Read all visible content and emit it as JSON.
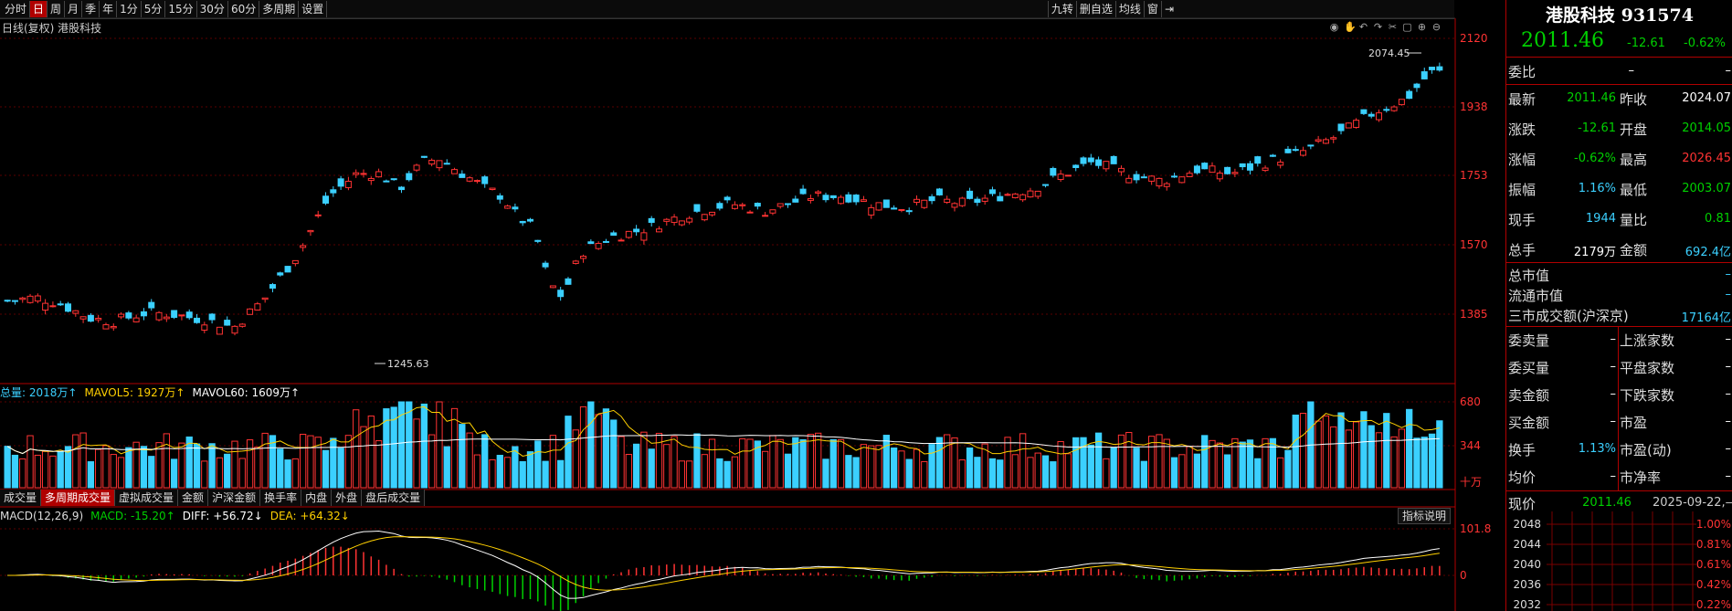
{
  "toolbar": {
    "periods": [
      "分时",
      "日",
      "周",
      "月",
      "季",
      "年",
      "1分",
      "5分",
      "15分",
      "30分",
      "60分",
      "多周期",
      "设置"
    ],
    "active_period": "日",
    "right_tools": [
      "九转",
      "删自选",
      "均线",
      "窗"
    ]
  },
  "chart_title": "日线(复权) 港股科技",
  "price_axis": [
    "2120",
    "1938",
    "1753",
    "1570",
    "1385"
  ],
  "annotations": {
    "high_label": "2074.45",
    "low_label": "1245.63"
  },
  "volume": {
    "legend": [
      {
        "text": "总量: 2018万↑",
        "color": "#3bd0ff"
      },
      {
        "text": "MAVOL5: 1927万↑",
        "color": "#ffd000"
      },
      {
        "text": "MAVOL60: 1609万↑",
        "color": "#ffffff"
      }
    ],
    "axis": [
      "680",
      "344",
      "十万"
    ],
    "tabs": [
      "成交量",
      "多周期成交量",
      "虚拟成交量",
      "金额",
      "沪深金额",
      "换手率",
      "内盘",
      "外盘",
      "盘后成交量"
    ],
    "active_tab": "多周期成交量"
  },
  "macd": {
    "legend": [
      {
        "text": "MACD(12,26,9)",
        "color": "#dddddd"
      },
      {
        "text": "MACD: -15.20↑",
        "color": "#00d000"
      },
      {
        "text": "DIFF: +56.72↓",
        "color": "#ffffff"
      },
      {
        "text": "DEA: +64.32↓",
        "color": "#ffd000"
      }
    ],
    "axis": [
      "101.8",
      "0"
    ],
    "indicator_button": "指标说明"
  },
  "panel": {
    "title": "港股科技 931574",
    "price": "2011.46",
    "change": "-12.61",
    "change_pct": "-0.62%",
    "weibi_label": "委比",
    "weibi_value": "–",
    "quotes_left": [
      {
        "label": "最新",
        "value": "2011.46",
        "color": "green"
      },
      {
        "label": "涨跌",
        "value": "-12.61",
        "color": "green"
      },
      {
        "label": "涨幅",
        "value": "-0.62%",
        "color": "green"
      },
      {
        "label": "振幅",
        "value": "1.16%",
        "color": "cyan"
      },
      {
        "label": "现手",
        "value": "1944",
        "color": "cyan"
      },
      {
        "label": "总手",
        "value": "2179万",
        "color": "white"
      }
    ],
    "quotes_right": [
      {
        "label": "昨收",
        "value": "2024.07",
        "color": "white"
      },
      {
        "label": "开盘",
        "value": "2014.05",
        "color": "green"
      },
      {
        "label": "最高",
        "value": "2026.45",
        "color": "red"
      },
      {
        "label": "最低",
        "value": "2003.07",
        "color": "green"
      },
      {
        "label": "量比",
        "value": "0.81",
        "color": "green"
      },
      {
        "label": "金额",
        "value": "692.4亿",
        "color": "cyan"
      }
    ],
    "market": [
      {
        "label": "总市值",
        "value": "–"
      },
      {
        "label": "流通市值",
        "value": "–"
      },
      {
        "label": "三市成交额(沪深京)",
        "value": "17164亿"
      }
    ],
    "bottom_left": [
      {
        "label": "委卖量",
        "value": "–"
      },
      {
        "label": "委买量",
        "value": "–"
      },
      {
        "label": "卖金额",
        "value": "–"
      },
      {
        "label": "买金额",
        "value": "–"
      },
      {
        "label": "换手",
        "value": "1.13%"
      },
      {
        "label": "均价",
        "value": "–"
      }
    ],
    "bottom_right": [
      {
        "label": "上涨家数",
        "value": "–"
      },
      {
        "label": "平盘家数",
        "value": "–"
      },
      {
        "label": "下跌家数",
        "value": "–"
      },
      {
        "label": "市盈",
        "value": "–"
      },
      {
        "label": "市盈(动)",
        "value": "–"
      },
      {
        "label": "市净率",
        "value": "–"
      }
    ],
    "tick": {
      "label": "现价",
      "price": "2011.46",
      "date": "2025-09-22,—"
    },
    "tick_grid_prices": [
      "2048",
      "2044",
      "2040",
      "2036",
      "2032"
    ],
    "tick_grid_pcts": [
      "1.00%",
      "0.81%",
      "0.61%",
      "0.42%",
      "0.22%"
    ]
  },
  "colors": {
    "up": "#ff3333",
    "down": "#3bd0ff",
    "accent": "#b00000",
    "macd_pos": "#ff3333",
    "macd_neg": "#00d000"
  }
}
